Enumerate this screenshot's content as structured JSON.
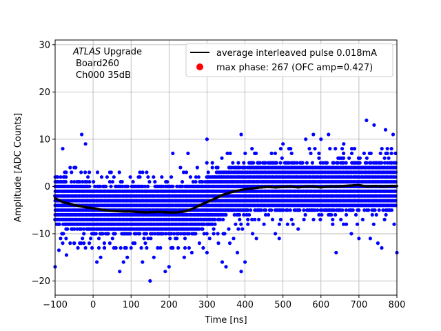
{
  "chart_data": {
    "type": "scatter",
    "title": "",
    "xlabel": "Time [ns]",
    "ylabel": "Amplitude [ADC Counts]",
    "xlim": [
      -100,
      800
    ],
    "ylim": [
      -23,
      31
    ],
    "xticks": [
      -100,
      0,
      100,
      200,
      300,
      400,
      500,
      600,
      700,
      800
    ],
    "yticks": [
      -20,
      -10,
      0,
      10,
      20,
      30
    ],
    "grid": true,
    "legend_position": "top-right",
    "annotation": {
      "line1_italic": "ATLAS",
      "line1_rest": " Upgrade",
      "line2": "Board260",
      "line3": "Ch000 35dB"
    },
    "series": [
      {
        "name": "average interleaved pulse 0.018mA",
        "kind": "line",
        "color": "#000000",
        "x": [
          -100,
          -80,
          -60,
          -40,
          -20,
          0,
          20,
          40,
          60,
          80,
          100,
          120,
          140,
          160,
          180,
          200,
          220,
          240,
          260,
          280,
          300,
          320,
          340,
          360,
          380,
          400,
          420,
          440,
          460,
          480,
          500,
          520,
          540,
          560,
          580,
          600,
          620,
          640,
          660,
          680,
          700,
          720,
          740,
          760,
          780,
          800
        ],
        "y": [
          -2.5,
          -3.3,
          -3.7,
          -4.1,
          -4.4,
          -4.6,
          -4.9,
          -5.1,
          -5.2,
          -5.3,
          -5.3,
          -5.4,
          -5.5,
          -5.4,
          -5.4,
          -5.5,
          -5.5,
          -5.3,
          -4.8,
          -4.0,
          -3.3,
          -2.6,
          -1.8,
          -1.3,
          -0.9,
          -0.6,
          -0.4,
          -0.2,
          -0.1,
          -0.2,
          -0.1,
          0.0,
          -0.2,
          0.0,
          0.0,
          -0.2,
          0.0,
          0.0,
          0.1,
          0.2,
          0.3,
          0.0,
          0.1,
          0.0,
          0.1,
          0.1
        ]
      },
      {
        "name": "max phase: 267 (OFC amp=0.427)",
        "kind": "marker",
        "color": "#ff0000",
        "x": [],
        "y": []
      }
    ],
    "scatter_samples": {
      "color": "#0000ff",
      "description_level": "discrete ADC samples around average pulse",
      "spread_core": 5,
      "outliers": [
        [
          -100,
          -17
        ],
        [
          -90,
          -13.5
        ],
        [
          -80,
          8
        ],
        [
          -80,
          -12
        ],
        [
          -70,
          -14.5
        ],
        [
          -60,
          -7
        ],
        [
          -50,
          -12
        ],
        [
          -40,
          -13
        ],
        [
          -30,
          11
        ],
        [
          -20,
          9
        ],
        [
          -20,
          -13
        ],
        [
          -10,
          -12
        ],
        [
          10,
          -16
        ],
        [
          20,
          -15
        ],
        [
          30,
          -13
        ],
        [
          60,
          -13
        ],
        [
          70,
          -18
        ],
        [
          80,
          -16
        ],
        [
          90,
          -15
        ],
        [
          100,
          -13
        ],
        [
          110,
          -12
        ],
        [
          130,
          -16
        ],
        [
          150,
          -20
        ],
        [
          160,
          -15
        ],
        [
          170,
          -13
        ],
        [
          190,
          -18
        ],
        [
          200,
          -17
        ],
        [
          210,
          7
        ],
        [
          210,
          -13
        ],
        [
          230,
          4
        ],
        [
          240,
          -15
        ],
        [
          250,
          7
        ],
        [
          260,
          -14
        ],
        [
          270,
          -10
        ],
        [
          280,
          -12
        ],
        [
          290,
          -13
        ],
        [
          300,
          -14
        ],
        [
          300,
          10
        ],
        [
          330,
          -12
        ],
        [
          340,
          -16
        ],
        [
          350,
          -17
        ],
        [
          360,
          -12
        ],
        [
          370,
          -11
        ],
        [
          380,
          -14
        ],
        [
          390,
          11
        ],
        [
          390,
          -18
        ],
        [
          400,
          -16
        ],
        [
          420,
          -10
        ],
        [
          430,
          -11
        ],
        [
          450,
          -8
        ],
        [
          470,
          7
        ],
        [
          480,
          -10
        ],
        [
          490,
          -11
        ],
        [
          500,
          9
        ],
        [
          520,
          8
        ],
        [
          540,
          -9
        ],
        [
          560,
          10
        ],
        [
          580,
          11
        ],
        [
          600,
          10
        ],
        [
          620,
          11
        ],
        [
          640,
          -14
        ],
        [
          660,
          9
        ],
        [
          680,
          -10
        ],
        [
          700,
          -11
        ],
        [
          720,
          14
        ],
        [
          730,
          -11
        ],
        [
          740,
          13
        ],
        [
          750,
          -12
        ],
        [
          760,
          -13
        ],
        [
          770,
          12
        ],
        [
          790,
          11
        ],
        [
          800,
          -14
        ]
      ]
    }
  }
}
